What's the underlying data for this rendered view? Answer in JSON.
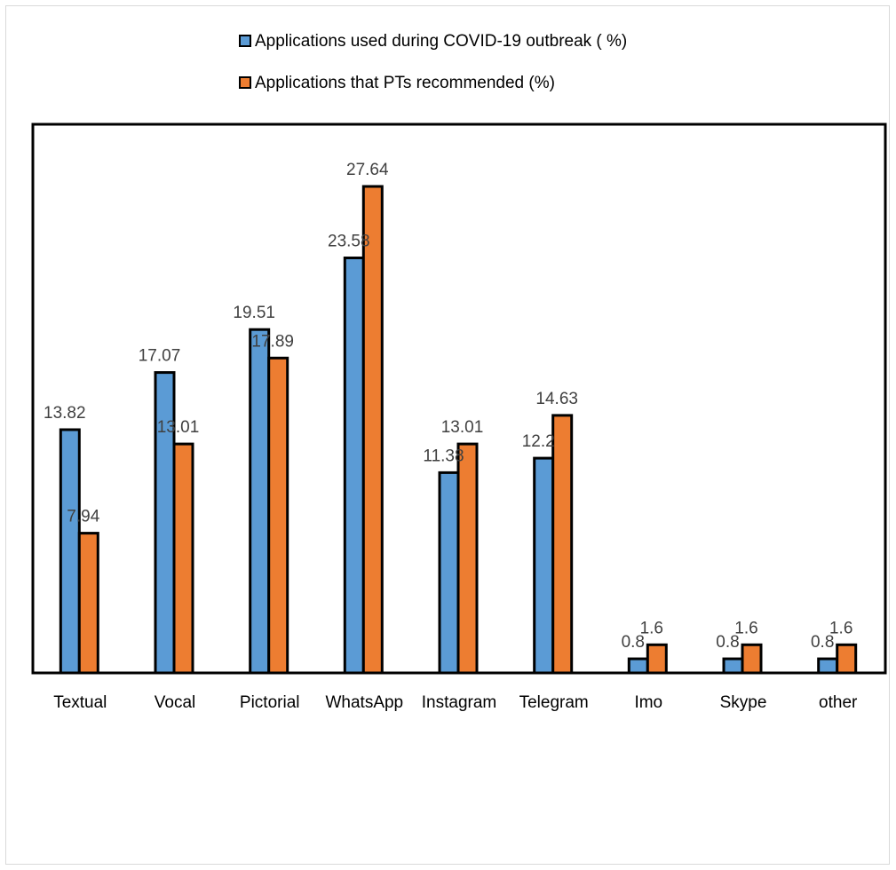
{
  "chart_data": {
    "type": "bar",
    "categories": [
      "Textual",
      "Vocal",
      "Pictorial",
      "WhatsApp",
      "Instagram",
      "Telegram",
      "Imo",
      "Skype",
      "other"
    ],
    "series": [
      {
        "name": "Applications used during COVID-19 outbreak ( %)",
        "color": "#5b9bd5",
        "values": [
          13.82,
          17.07,
          19.51,
          23.58,
          11.38,
          12.2,
          0.8,
          0.8,
          0.8
        ],
        "labels": [
          "13.82",
          "17.07",
          "19.51",
          "23.58",
          "11.38",
          "12.2",
          "0.8",
          "0.8",
          "0.8"
        ]
      },
      {
        "name": "Applications that PTs recommended  (%)",
        "color": "#ed7d31",
        "values": [
          7.94,
          13.01,
          17.89,
          27.64,
          13.01,
          14.63,
          1.6,
          1.6,
          1.6
        ],
        "labels": [
          "7.94",
          "13.01",
          "17.89",
          "27.64",
          "13.01",
          "14.63",
          "1.6",
          "1.6",
          "1.6"
        ]
      }
    ],
    "ylim": [
      0,
      31.17
    ],
    "legend_position": "top-center",
    "grid": false
  }
}
